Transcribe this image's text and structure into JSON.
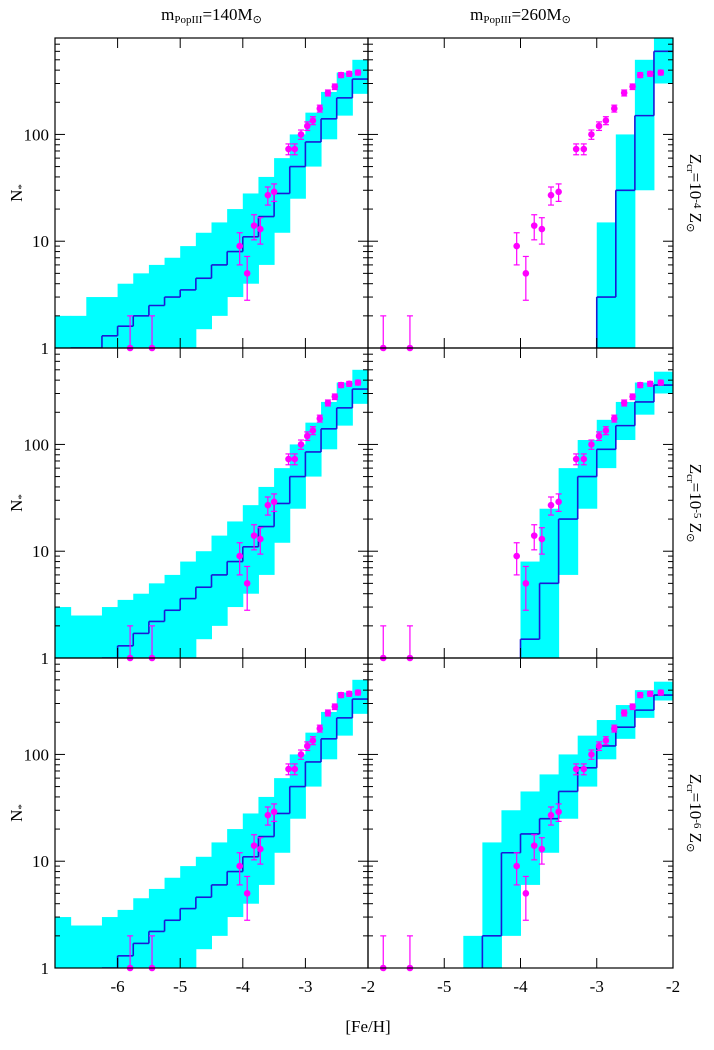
{
  "column_titles": [
    [
      "m",
      "PopIII",
      "=140M",
      "⊙"
    ],
    [
      "m",
      "PopIII",
      "=260M",
      "⊙"
    ]
  ],
  "row_labels": [
    [
      "Z",
      "cr",
      "=10",
      "-4",
      " Z",
      "⊙"
    ],
    [
      "Z",
      "cr",
      "=10",
      "-5",
      " Z",
      "⊙"
    ],
    [
      "Z",
      "cr",
      "=10",
      "-6",
      " Z",
      "⊙"
    ]
  ],
  "ylabel": [
    "N",
    "*"
  ],
  "xlabel": "[Fe/H]",
  "observed": {
    "color": "#ff00ff",
    "x": [
      -5.8,
      -5.45,
      -4.05,
      -3.93,
      -3.82,
      -3.72,
      -3.6,
      -3.5,
      -3.27,
      -3.17,
      -3.07,
      -2.97,
      -2.88,
      -2.77,
      -2.64,
      -2.53,
      -2.43,
      -2.3,
      -2.16
    ],
    "values": [
      1,
      1,
      9,
      5,
      14,
      13,
      27,
      29,
      73,
      73,
      100,
      120,
      135,
      175,
      245,
      280,
      360,
      370,
      380
    ],
    "errors": [
      1,
      1,
      3,
      2.2,
      3.7,
      3.6,
      5.2,
      5.4,
      8.5,
      8.5,
      10,
      11,
      11.6,
      13,
      15.7,
      16.7,
      19,
      19,
      19.5
    ]
  },
  "y_minor_ticks": [
    2,
    3,
    4,
    5,
    6,
    7,
    8,
    9,
    20,
    30,
    40,
    50,
    60,
    70,
    80,
    90,
    200,
    300,
    400,
    500,
    600,
    700
  ],
  "chart_data": [
    {
      "type": "histogram",
      "log_y": true,
      "xlim": [
        -7,
        -2
      ],
      "xticks": [
        -6,
        -5,
        -4,
        -3,
        -2
      ],
      "ylim": [
        1,
        800
      ],
      "yticks": [
        1,
        10,
        100
      ],
      "color": "#1a1ad6",
      "band_color": "#00ffff",
      "bins": [
        -7,
        -6.75,
        -6.5,
        -6.25,
        -6,
        -5.75,
        -5.5,
        -5.25,
        -5,
        -4.75,
        -4.5,
        -4.25,
        -4,
        -3.75,
        -3.5,
        -3.25,
        -3,
        -2.75,
        -2.5,
        -2.25,
        -2
      ],
      "values": [
        0,
        1,
        1,
        1.3,
        1.6,
        2,
        2.5,
        3,
        3.5,
        4.5,
        6,
        8,
        11,
        17,
        28,
        50,
        85,
        140,
        220,
        330
      ],
      "lower": [
        0,
        0,
        0,
        0,
        0,
        0,
        0,
        1,
        1,
        1.5,
        2,
        3,
        4,
        6,
        12,
        25,
        50,
        90,
        150,
        240
      ],
      "upper": [
        2,
        2,
        3,
        3,
        4,
        5,
        6,
        7,
        9,
        12,
        15,
        20,
        28,
        40,
        60,
        100,
        160,
        250,
        380,
        500
      ]
    },
    {
      "type": "histogram",
      "log_y": true,
      "xlim": [
        -6,
        -2
      ],
      "xticks": [
        -5,
        -4,
        -3,
        -2
      ],
      "ylim": [
        1,
        800
      ],
      "yticks": [
        1,
        10,
        100
      ],
      "color": "#1a1ad6",
      "band_color": "#00ffff",
      "bins": [
        -6,
        -5.75,
        -5.5,
        -5.25,
        -5,
        -4.75,
        -4.5,
        -4.25,
        -4,
        -3.75,
        -3.5,
        -3.25,
        -3,
        -2.75,
        -2.5,
        -2.25,
        -2
      ],
      "values": [
        0,
        0,
        0,
        0,
        0,
        0,
        0,
        0,
        0,
        0,
        0,
        0,
        3,
        30,
        150,
        600
      ],
      "lower": [
        0,
        0,
        0,
        0,
        0,
        0,
        0,
        0,
        0,
        0,
        0,
        0,
        0,
        1,
        30,
        300
      ],
      "upper": [
        0,
        0,
        0,
        0,
        0,
        0,
        0,
        0,
        0,
        0,
        0,
        0,
        15,
        100,
        500,
        800
      ]
    },
    {
      "type": "histogram",
      "log_y": true,
      "xlim": [
        -7,
        -2
      ],
      "xticks": [
        -6,
        -5,
        -4,
        -3,
        -2
      ],
      "ylim": [
        1,
        800
      ],
      "yticks": [
        1,
        10,
        100
      ],
      "color": "#1a1ad6",
      "band_color": "#00ffff",
      "bins": [
        -7,
        -6.75,
        -6.5,
        -6.25,
        -6,
        -5.75,
        -5.5,
        -5.25,
        -5,
        -4.75,
        -4.5,
        -4.25,
        -4,
        -3.75,
        -3.5,
        -3.25,
        -3,
        -2.75,
        -2.5,
        -2.25,
        -2
      ],
      "values": [
        0,
        0,
        0,
        1,
        1.3,
        1.7,
        2.2,
        2.8,
        3.6,
        4.6,
        6,
        8,
        11,
        17,
        28,
        50,
        85,
        140,
        220,
        330
      ],
      "lower": [
        0,
        0,
        0,
        0,
        0,
        0,
        0,
        0,
        1,
        1.5,
        2,
        3,
        4,
        6,
        12,
        25,
        50,
        90,
        150,
        240
      ],
      "upper": [
        3,
        2.5,
        2.5,
        3,
        3.5,
        4,
        5,
        6,
        8,
        10,
        14,
        19,
        27,
        40,
        60,
        100,
        160,
        250,
        380,
        500
      ]
    },
    {
      "type": "histogram",
      "log_y": true,
      "xlim": [
        -6,
        -2
      ],
      "xticks": [
        -5,
        -4,
        -3,
        -2
      ],
      "ylim": [
        1,
        800
      ],
      "yticks": [
        1,
        10,
        100
      ],
      "color": "#1a1ad6",
      "band_color": "#00ffff",
      "bins": [
        -6,
        -5.75,
        -5.5,
        -5.25,
        -5,
        -4.75,
        -4.5,
        -4.25,
        -4,
        -3.75,
        -3.5,
        -3.25,
        -3,
        -2.75,
        -2.5,
        -2.25,
        -2
      ],
      "values": [
        0,
        0,
        0,
        0,
        0,
        0,
        0,
        0,
        1.5,
        5,
        20,
        50,
        90,
        150,
        250,
        360
      ],
      "lower": [
        0,
        0,
        0,
        0,
        0,
        0,
        0,
        0,
        0,
        1,
        6,
        25,
        60,
        110,
        190,
        300
      ],
      "upper": [
        0,
        0,
        0,
        0,
        0,
        0,
        0,
        0,
        8,
        25,
        60,
        110,
        170,
        250,
        380,
        480
      ]
    },
    {
      "type": "histogram",
      "log_y": true,
      "xlim": [
        -7,
        -2
      ],
      "xticks": [
        -6,
        -5,
        -4,
        -3,
        -2
      ],
      "ylim": [
        1,
        800
      ],
      "yticks": [
        1,
        10,
        100
      ],
      "color": "#1a1ad6",
      "band_color": "#00ffff",
      "bins": [
        -7,
        -6.75,
        -6.5,
        -6.25,
        -6,
        -5.75,
        -5.5,
        -5.25,
        -5,
        -4.75,
        -4.5,
        -4.25,
        -4,
        -3.75,
        -3.5,
        -3.25,
        -3,
        -2.75,
        -2.5,
        -2.25,
        -2
      ],
      "values": [
        0,
        0,
        0,
        1,
        1.3,
        1.7,
        2.2,
        2.8,
        3.6,
        4.6,
        6,
        8,
        11,
        17,
        28,
        50,
        85,
        140,
        220,
        330
      ],
      "lower": [
        0,
        0,
        0,
        0,
        0,
        0,
        0,
        0,
        1,
        1.5,
        2,
        3,
        4,
        6,
        12,
        25,
        50,
        90,
        150,
        240
      ],
      "upper": [
        3,
        2.5,
        2.5,
        3,
        3.5,
        4.5,
        5.5,
        7,
        9,
        11,
        15,
        20,
        28,
        40,
        60,
        100,
        160,
        250,
        380,
        500
      ]
    },
    {
      "type": "histogram",
      "log_y": true,
      "xlim": [
        -6,
        -2
      ],
      "xticks": [
        -5,
        -4,
        -3,
        -2
      ],
      "ylim": [
        1,
        800
      ],
      "yticks": [
        1,
        10,
        100
      ],
      "color": "#1a1ad6",
      "band_color": "#00ffff",
      "bins": [
        -6,
        -5.75,
        -5.5,
        -5.25,
        -5,
        -4.75,
        -4.5,
        -4.25,
        -4,
        -3.75,
        -3.5,
        -3.25,
        -3,
        -2.75,
        -2.5,
        -2.25,
        -2
      ],
      "values": [
        0,
        0,
        0,
        0,
        0,
        0,
        2,
        12,
        18,
        25,
        45,
        75,
        120,
        180,
        260,
        360
      ],
      "lower": [
        0,
        0,
        0,
        0,
        0,
        0,
        0,
        2,
        6,
        12,
        25,
        50,
        90,
        140,
        220,
        320
      ],
      "upper": [
        0,
        0,
        0,
        0,
        0,
        2,
        15,
        30,
        45,
        65,
        100,
        150,
        210,
        290,
        400,
        480
      ]
    }
  ]
}
